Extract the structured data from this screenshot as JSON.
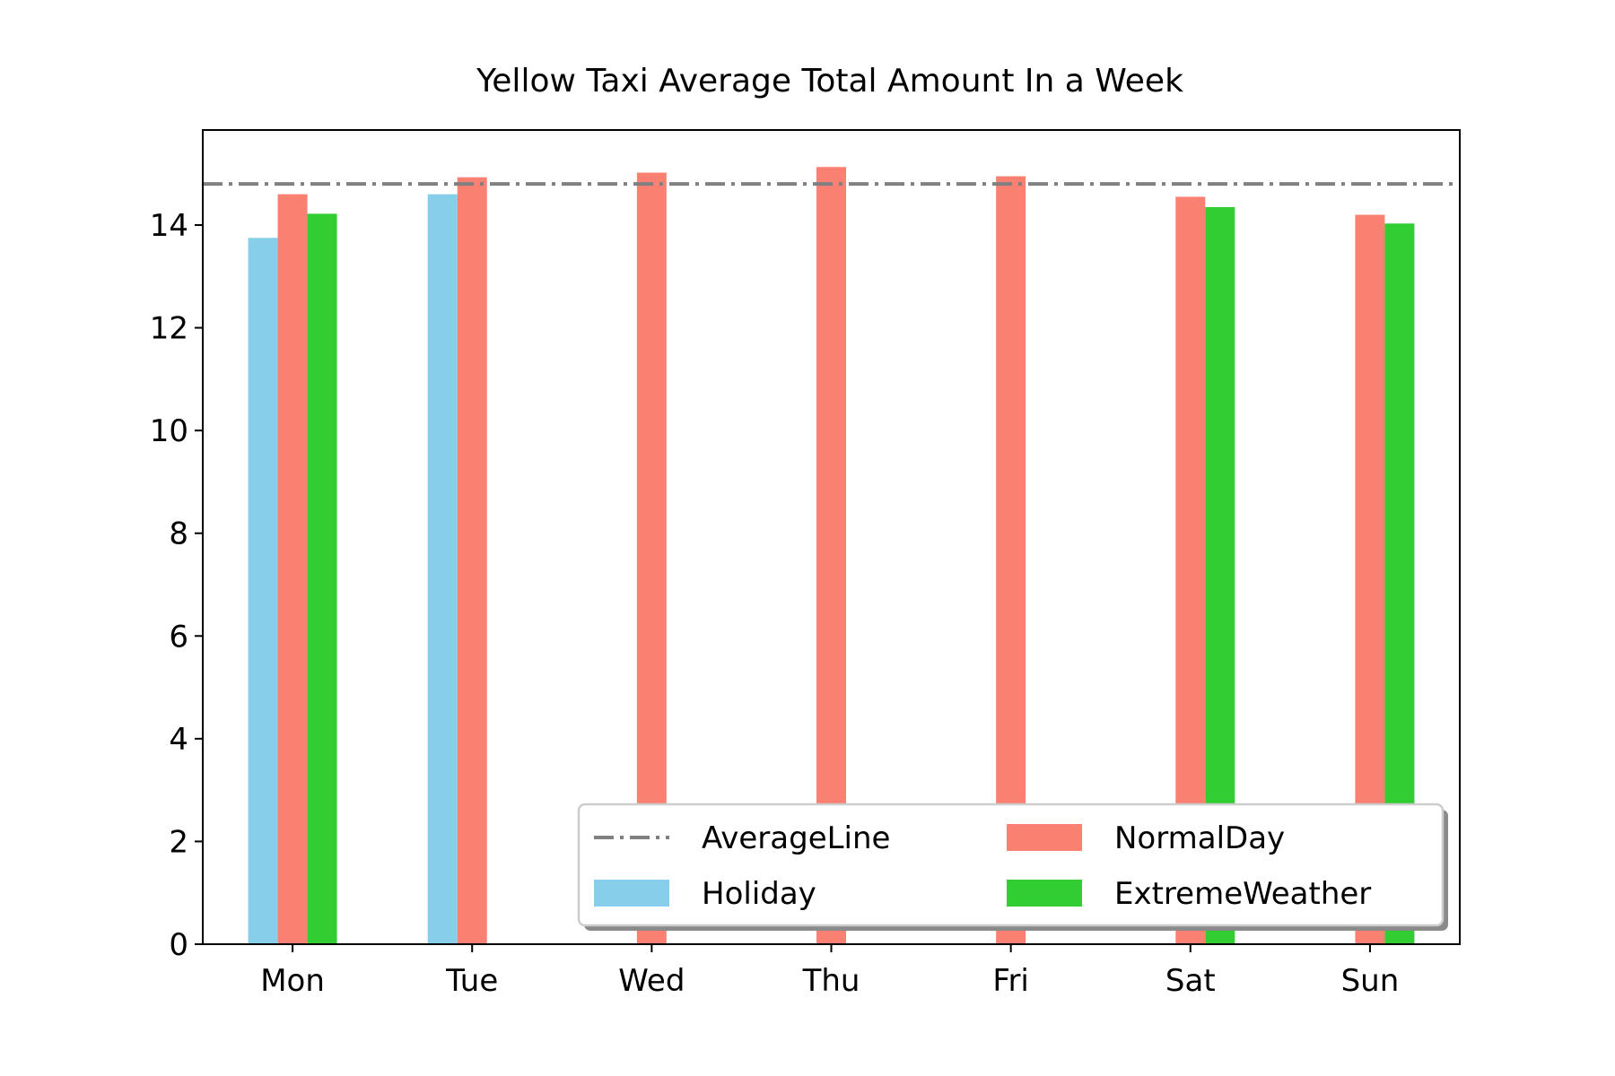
{
  "chart_data": {
    "type": "bar",
    "title": "Yellow Taxi Average Total Amount In a Week",
    "xlabel": "",
    "ylabel": "",
    "categories": [
      "Mon",
      "Tue",
      "Wed",
      "Thu",
      "Fri",
      "Sat",
      "Sun"
    ],
    "ylim": [
      0,
      15.85
    ],
    "yticks": [
      0,
      2,
      4,
      6,
      8,
      10,
      12,
      14
    ],
    "grid": false,
    "series": [
      {
        "name": "Holiday",
        "color": "#87ceeb",
        "values": [
          13.75,
          14.6,
          null,
          null,
          null,
          null,
          null
        ]
      },
      {
        "name": "NormalDay",
        "color": "#fa8072",
        "values": [
          14.6,
          14.93,
          15.02,
          15.13,
          14.95,
          14.55,
          14.2
        ]
      },
      {
        "name": "ExtremeWeather",
        "color": "#32cd32",
        "values": [
          14.22,
          null,
          null,
          null,
          null,
          14.35,
          14.03
        ]
      }
    ],
    "reference_line": {
      "name": "AverageLine",
      "value": 14.8,
      "color": "#808080",
      "style": "dash-dot"
    },
    "legend": {
      "placement": "lower-right",
      "columns": 2,
      "entries": [
        "AverageLine",
        "NormalDay",
        "Holiday",
        "ExtremeWeather"
      ]
    }
  }
}
